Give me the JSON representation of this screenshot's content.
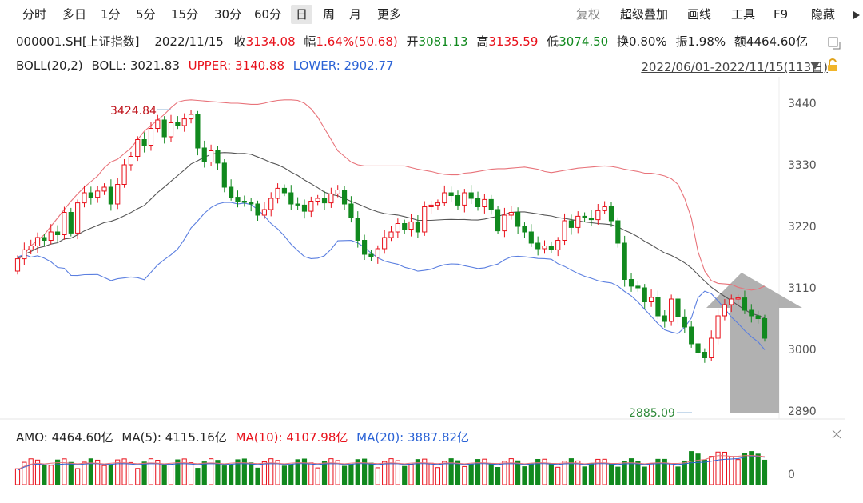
{
  "toolbar": {
    "periods": [
      "分时",
      "多日",
      "1分",
      "5分",
      "15分",
      "30分",
      "60分",
      "日",
      "周",
      "月",
      "更多"
    ],
    "active_period": "日",
    "right_tools": [
      "复权",
      "超级叠加",
      "画线",
      "工具",
      "F9",
      "隐藏"
    ]
  },
  "quote": {
    "code": "000001.SH[上证指数]",
    "date": "2022/11/15",
    "close_label": "收",
    "close": "3134.08",
    "change_label": "幅",
    "change": "1.64%(50.68)",
    "open_label": "开",
    "open": "3081.13",
    "high_label": "高",
    "high": "3135.59",
    "low_label": "低",
    "low": "3074.50",
    "turnover_label": "换",
    "turnover": "0.80%",
    "amplitude_label": "振",
    "amplitude": "1.98%",
    "amount_label": "额",
    "amount": "4464.60亿"
  },
  "boll": {
    "label": "BOLL(20,2)",
    "mid_label": "BOLL:",
    "mid": "3021.83",
    "upper_label": "UPPER:",
    "upper": "3140.88",
    "lower_label": "LOWER:",
    "lower": "2902.77",
    "range": "2022/06/01-2022/11/15(113日)"
  },
  "volume_header": {
    "amo_label": "AMO:",
    "amo": "4464.60亿",
    "ma5_label": "MA(5):",
    "ma5": "4115.16亿",
    "ma10_label": "MA(10):",
    "ma10": "4107.98亿",
    "ma20_label": "MA(20):",
    "ma20": "3887.82亿"
  },
  "colors": {
    "up": "#e8101a",
    "down": "#11891e",
    "upper": "#e8737a",
    "mid": "#555555",
    "lower": "#5b7fe0",
    "ma20": "#2b63d6",
    "arrow": "#a9a9a9"
  },
  "chart_data": {
    "type": "candlestick",
    "y_ticks": [
      3440,
      3330,
      3220,
      3110,
      3000,
      2890
    ],
    "ylim": [
      2875,
      3470
    ],
    "high_annotation": "3424.84",
    "low_annotation": "2885.09",
    "volume_tick": "0",
    "series": {
      "candles": [
        [
          3140,
          3162
        ],
        [
          3162,
          3178
        ],
        [
          3178,
          3185
        ],
        [
          3185,
          3200
        ],
        [
          3200,
          3195
        ],
        [
          3195,
          3210
        ],
        [
          3210,
          3205
        ],
        [
          3205,
          3245
        ],
        [
          3245,
          3208
        ],
        [
          3208,
          3262
        ],
        [
          3262,
          3280
        ],
        [
          3280,
          3272
        ],
        [
          3272,
          3283
        ],
        [
          3283,
          3290
        ],
        [
          3290,
          3260
        ],
        [
          3260,
          3295
        ],
        [
          3295,
          3330
        ],
        [
          3330,
          3345
        ],
        [
          3345,
          3375
        ],
        [
          3375,
          3365
        ],
        [
          3365,
          3395
        ],
        [
          3395,
          3410
        ],
        [
          3410,
          3380
        ],
        [
          3380,
          3405
        ],
        [
          3405,
          3400
        ],
        [
          3400,
          3412
        ],
        [
          3412,
          3420
        ],
        [
          3420,
          3360
        ],
        [
          3360,
          3335
        ],
        [
          3335,
          3355
        ],
        [
          3355,
          3333
        ],
        [
          3333,
          3290
        ],
        [
          3290,
          3272
        ],
        [
          3272,
          3265
        ],
        [
          3265,
          3263
        ],
        [
          3263,
          3260
        ],
        [
          3260,
          3240
        ],
        [
          3240,
          3250
        ],
        [
          3250,
          3270
        ],
        [
          3270,
          3288
        ],
        [
          3288,
          3280
        ],
        [
          3280,
          3260
        ],
        [
          3260,
          3258
        ],
        [
          3258,
          3247
        ],
        [
          3247,
          3265
        ],
        [
          3265,
          3270
        ],
        [
          3270,
          3262
        ],
        [
          3262,
          3278
        ],
        [
          3278,
          3285
        ],
        [
          3285,
          3260
        ],
        [
          3260,
          3235
        ],
        [
          3235,
          3195
        ],
        [
          3195,
          3170
        ],
        [
          3170,
          3165
        ],
        [
          3165,
          3180
        ],
        [
          3180,
          3200
        ],
        [
          3200,
          3210
        ],
        [
          3210,
          3225
        ],
        [
          3225,
          3215
        ],
        [
          3215,
          3228
        ],
        [
          3228,
          3210
        ],
        [
          3210,
          3255
        ],
        [
          3255,
          3258
        ],
        [
          3258,
          3262
        ],
        [
          3262,
          3280
        ],
        [
          3280,
          3275
        ],
        [
          3275,
          3258
        ],
        [
          3258,
          3280
        ],
        [
          3280,
          3270
        ],
        [
          3270,
          3255
        ],
        [
          3255,
          3268
        ],
        [
          3268,
          3250
        ],
        [
          3250,
          3212
        ],
        [
          3212,
          3240
        ],
        [
          3240,
          3245
        ],
        [
          3245,
          3220
        ],
        [
          3220,
          3210
        ],
        [
          3210,
          3190
        ],
        [
          3190,
          3180
        ],
        [
          3180,
          3185
        ],
        [
          3185,
          3178
        ],
        [
          3178,
          3195
        ],
        [
          3195,
          3230
        ],
        [
          3230,
          3218
        ],
        [
          3218,
          3238
        ],
        [
          3238,
          3235
        ],
        [
          3235,
          3232
        ],
        [
          3232,
          3248
        ],
        [
          3248,
          3255
        ],
        [
          3255,
          3230
        ],
        [
          3230,
          3190
        ],
        [
          3190,
          3125
        ],
        [
          3125,
          3113
        ],
        [
          3113,
          3110
        ],
        [
          3110,
          3085
        ],
        [
          3085,
          3093
        ],
        [
          3093,
          3060
        ],
        [
          3060,
          3050
        ],
        [
          3050,
          3090
        ],
        [
          3090,
          3058
        ],
        [
          3058,
          3040
        ],
        [
          3040,
          3010
        ],
        [
          3010,
          2995
        ],
        [
          2995,
          2985
        ],
        [
          2985,
          3020
        ],
        [
          3020,
          3060
        ],
        [
          3060,
          3080
        ],
        [
          3080,
          3090
        ],
        [
          3090,
          3092
        ],
        [
          3092,
          3070
        ],
        [
          3070,
          3060
        ],
        [
          3060,
          3055
        ],
        [
          3055,
          3020
        ]
      ],
      "upper_band": [
        3159,
        3170,
        3185,
        3195,
        3205,
        3220,
        3235,
        3250,
        3265,
        3278,
        3290,
        3300,
        3310,
        3325,
        3335,
        3340,
        3350,
        3360,
        3375,
        3390,
        3400,
        3410,
        3420,
        3432,
        3442,
        3445,
        3446,
        3445,
        3444,
        3443,
        3442,
        3441,
        3440,
        3440,
        3439,
        3438,
        3438,
        3440,
        3443,
        3445,
        3446,
        3446,
        3445,
        3440,
        3430,
        3415,
        3395,
        3375,
        3355,
        3345,
        3335,
        3330,
        3328,
        3328,
        3328,
        3328,
        3328,
        3328,
        3328,
        3325,
        3322,
        3320,
        3318,
        3315,
        3313,
        3312,
        3312,
        3315,
        3316,
        3318,
        3320,
        3322,
        3323,
        3323,
        3324,
        3325,
        3326,
        3324,
        3322,
        3318,
        3316,
        3318,
        3320,
        3322,
        3324,
        3325,
        3326,
        3327,
        3328,
        3327,
        3325,
        3322,
        3320,
        3318,
        3315,
        3315,
        3313,
        3310,
        3305,
        3295,
        3270,
        3235,
        3175,
        3140,
        3123,
        3118,
        3117,
        3116,
        3111,
        3108,
        3106,
        3108,
        3113
      ]
    }
  }
}
